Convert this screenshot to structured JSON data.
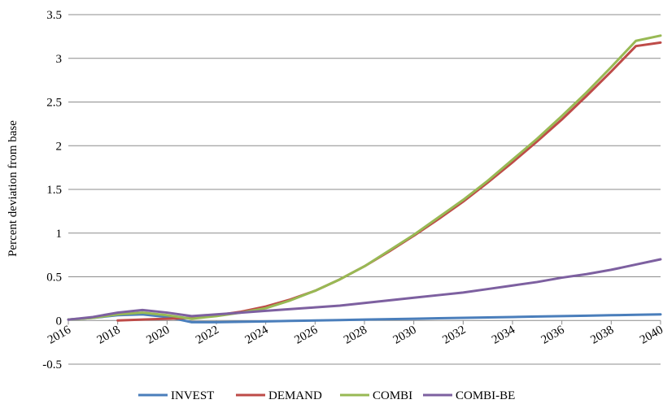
{
  "chart_data": {
    "type": "line",
    "title": "",
    "xlabel": "",
    "ylabel": "Percent deviation from base",
    "ylim": [
      -0.5,
      3.5
    ],
    "yticks": [
      "-0.5",
      "0",
      "0.5",
      "1",
      "1.5",
      "2",
      "2.5",
      "3",
      "3.5"
    ],
    "xticks": [
      "2016",
      "2018",
      "2020",
      "2022",
      "2024",
      "2026",
      "2028",
      "2030",
      "2032",
      "2034",
      "2036",
      "2038",
      "2040"
    ],
    "x": [
      2016,
      2017,
      2018,
      2019,
      2020,
      2021,
      2022,
      2023,
      2024,
      2025,
      2026,
      2027,
      2028,
      2029,
      2030,
      2031,
      2032,
      2033,
      2034,
      2035,
      2036,
      2037,
      2038,
      2039,
      2040
    ],
    "grid": "horizontal",
    "legend": "bottom",
    "series": [
      {
        "name": "INVEST",
        "color": "#4a7ebb",
        "values": [
          0.01,
          0.03,
          0.06,
          0.07,
          0.04,
          -0.02,
          -0.02,
          -0.015,
          -0.01,
          -0.005,
          0.0,
          0.005,
          0.01,
          0.015,
          0.02,
          0.025,
          0.03,
          0.035,
          0.04,
          0.045,
          0.05,
          0.055,
          0.06,
          0.065,
          0.07
        ]
      },
      {
        "name": "DEMAND",
        "color": "#be4b48",
        "values": [
          null,
          null,
          0.0,
          0.01,
          0.02,
          0.03,
          0.06,
          0.1,
          0.16,
          0.24,
          0.34,
          0.47,
          0.62,
          0.79,
          0.97,
          1.16,
          1.36,
          1.58,
          1.81,
          2.05,
          2.3,
          2.57,
          2.85,
          3.14,
          3.18
        ]
      },
      {
        "name": "COMBI",
        "color": "#98b954",
        "values": [
          0.01,
          0.03,
          0.07,
          0.09,
          0.06,
          0.02,
          0.05,
          0.09,
          0.14,
          0.23,
          0.34,
          0.47,
          0.62,
          0.8,
          0.98,
          1.18,
          1.38,
          1.6,
          1.84,
          2.08,
          2.34,
          2.61,
          2.9,
          3.2,
          3.26
        ]
      },
      {
        "name": "COMBI-BE",
        "color": "#7d60a0",
        "values": [
          0.01,
          0.04,
          0.09,
          0.12,
          0.09,
          0.05,
          0.07,
          0.09,
          0.11,
          0.13,
          0.15,
          0.17,
          0.2,
          0.23,
          0.26,
          0.29,
          0.32,
          0.36,
          0.4,
          0.44,
          0.49,
          0.53,
          0.58,
          0.64,
          0.7
        ]
      }
    ]
  }
}
